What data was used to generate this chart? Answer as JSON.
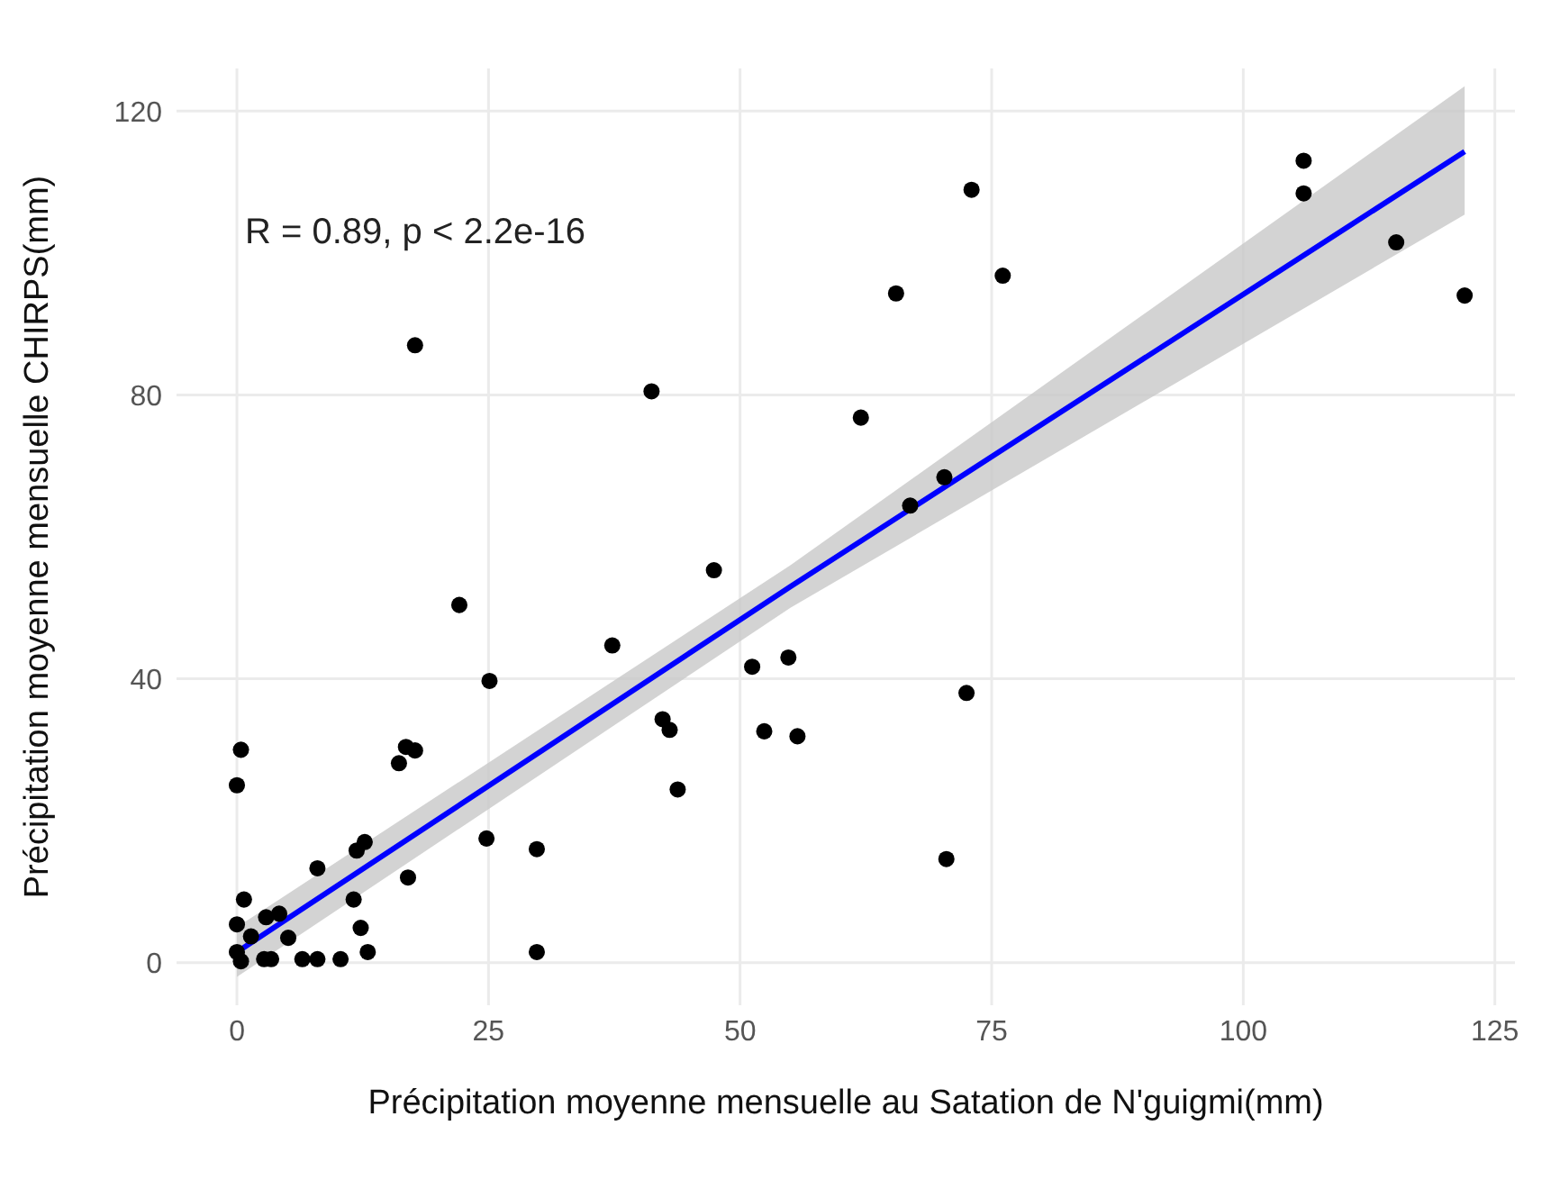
{
  "chart_data": {
    "type": "scatter",
    "xlabel": "Précipitation moyenne mensuelle au Satation de N'guigmi(mm)",
    "ylabel": "Précipitation moyenne mensuelle CHIRPS(mm)",
    "annotations": [
      "R = 0.89, p < 2.2e-16"
    ],
    "xlim": [
      -6,
      127
    ],
    "xticks": [
      0,
      25,
      50,
      75,
      100,
      125
    ],
    "ylim": [
      -6,
      126
    ],
    "yticks": [
      0,
      40,
      80,
      120
    ],
    "grid": true,
    "series": [
      {
        "color": "#000000",
        "marker": "circle",
        "x": [
          0.4,
          0,
          16.8,
          17.7,
          16.1,
          12.7,
          11.9,
          8,
          24.8,
          29.8,
          17,
          0.7,
          11.6,
          0,
          2.9,
          4.2,
          5.1,
          12.3,
          1.4,
          0,
          0.4,
          2.7,
          3.4,
          6.5,
          8,
          10.3,
          13,
          29.8,
          25.1,
          17.7,
          41.2,
          62,
          65.5,
          22.1,
          37.3,
          47.4,
          51.2,
          54.8,
          42.3,
          43,
          52.4,
          55.7,
          43.8,
          72.5,
          70.5,
          70.3,
          66.9,
          73,
          76.1,
          106,
          106,
          115.2,
          122
        ],
        "values": [
          30,
          25,
          30.4,
          29.9,
          28.1,
          17,
          15.8,
          13.3,
          17.5,
          16,
          12,
          8.9,
          8.9,
          5.4,
          6.4,
          6.9,
          3.5,
          4.9,
          3.7,
          1.5,
          0.2,
          0.5,
          0.5,
          0.5,
          0.5,
          0.5,
          1.5,
          1.5,
          39.7,
          87,
          80.5,
          76.8,
          94.3,
          50.4,
          44.7,
          55.3,
          41.7,
          43,
          34.3,
          32.8,
          32.6,
          31.9,
          24.4,
          38,
          14.6,
          68.4,
          64.4,
          108.9,
          96.8,
          113,
          108.4,
          101.5,
          94
        ]
      },
      {
        "type": "line",
        "color": "#0000ff",
        "x": [
          0,
          55,
          122
        ],
        "values": [
          1.5,
          53,
          114.3
        ],
        "lower": [
          -2,
          50,
          105.4
        ],
        "upper": [
          5,
          56,
          123.5
        ]
      }
    ]
  }
}
